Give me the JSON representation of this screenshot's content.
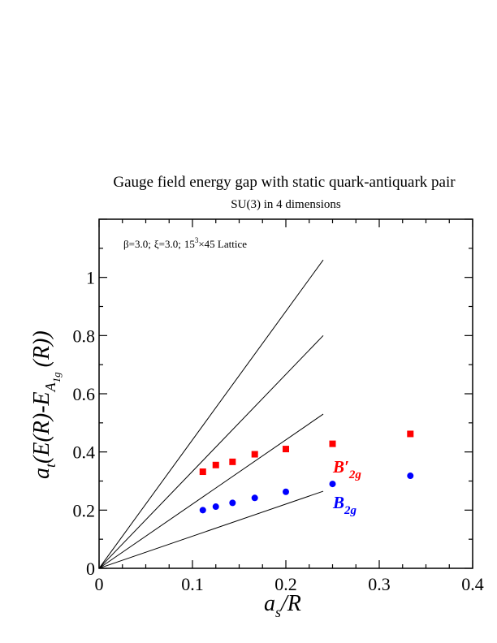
{
  "chart_data": {
    "type": "scatter",
    "title": "Gauge field energy gap with static quark-antiquark pair",
    "subtitle": "SU(3) in 4 dimensions",
    "annotation": {
      "beta_part": "β=3.0;",
      "xi_part": "ξ=3.0;",
      "lattice_base": "15",
      "lattice_sup": "3",
      "lattice_rest": "×45 Lattice"
    },
    "xlabel": {
      "main": "a",
      "sub": "s",
      "rest": "/R"
    },
    "ylabel": {
      "a": "a",
      "t": "t",
      "mid": "(E(R)-E",
      "A": "A",
      "sub1": "1",
      "g": "g",
      "end": "(R))"
    },
    "xlim": [
      0,
      0.4
    ],
    "ylim": [
      0,
      1.2
    ],
    "xticks": [
      0,
      0.1,
      0.2,
      0.3,
      0.4
    ],
    "xtick_labels": [
      "0",
      "0.1",
      "0.2",
      "0.3",
      "0.4"
    ],
    "yticks": [
      0,
      0.2,
      0.4,
      0.6,
      0.8,
      1.0
    ],
    "ytick_labels": [
      "0",
      "0.2",
      "0.4",
      "0.6",
      "0.8",
      "1"
    ],
    "grid": false,
    "series": [
      {
        "name": "B'2g",
        "label_main": "B",
        "label_prime": "′",
        "label_sub": "2g",
        "marker": "square",
        "color": "#ff0000",
        "x": [
          0.1111,
          0.125,
          0.1429,
          0.1667,
          0.2,
          0.25,
          0.3333
        ],
        "y": [
          0.332,
          0.355,
          0.366,
          0.392,
          0.41,
          0.428,
          0.462
        ]
      },
      {
        "name": "B2g",
        "label_main": "B",
        "label_sub": "2g",
        "marker": "circle",
        "color": "#0000ff",
        "x": [
          0.1111,
          0.125,
          0.1429,
          0.1667,
          0.2,
          0.25,
          0.3333
        ],
        "y": [
          0.2,
          0.212,
          0.225,
          0.242,
          0.263,
          0.29,
          0.318
        ]
      }
    ],
    "reference_lines": [
      {
        "x": [
          0,
          0.24
        ],
        "y": [
          0,
          1.06
        ]
      },
      {
        "x": [
          0,
          0.24
        ],
        "y": [
          0,
          0.8
        ]
      },
      {
        "x": [
          0,
          0.24
        ],
        "y": [
          0,
          0.53
        ]
      },
      {
        "x": [
          0,
          0.24
        ],
        "y": [
          0,
          0.265
        ]
      }
    ]
  }
}
